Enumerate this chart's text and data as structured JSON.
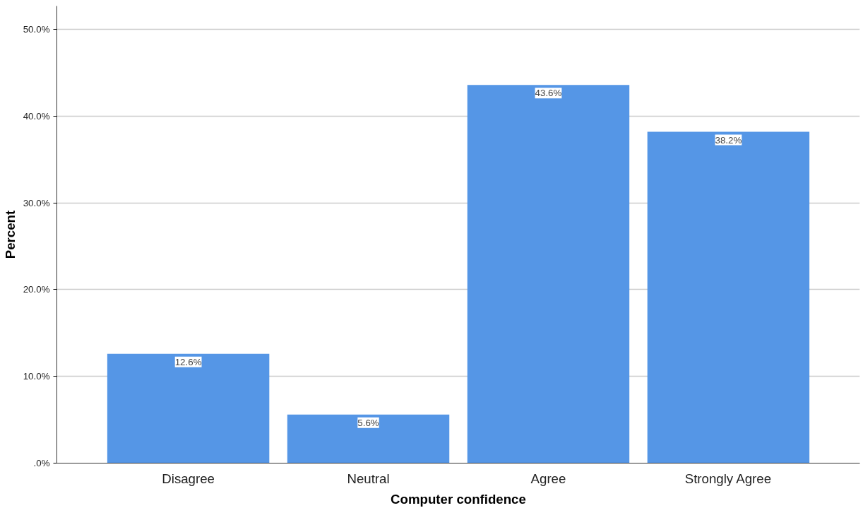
{
  "chart_data": {
    "type": "bar",
    "xlabel": "Computer confidence",
    "ylabel": "Percent",
    "categories": [
      "Disagree",
      "Neutral",
      "Agree",
      "Strongly Agree"
    ],
    "values": [
      12.6,
      5.6,
      43.6,
      38.2
    ],
    "value_labels": [
      "12.6%",
      "5.6%",
      "43.6%",
      "38.2%"
    ],
    "color": "#5596e6",
    "ylim": [
      0,
      52.7
    ],
    "yticks": [
      {
        "value": 0,
        "label": ".0%"
      },
      {
        "value": 10,
        "label": "10.0%"
      },
      {
        "value": 20,
        "label": "20.0%"
      },
      {
        "value": 30,
        "label": "30.0%"
      },
      {
        "value": 40,
        "label": "40.0%"
      },
      {
        "value": 50,
        "label": "50.0%"
      }
    ],
    "grid": "y"
  }
}
